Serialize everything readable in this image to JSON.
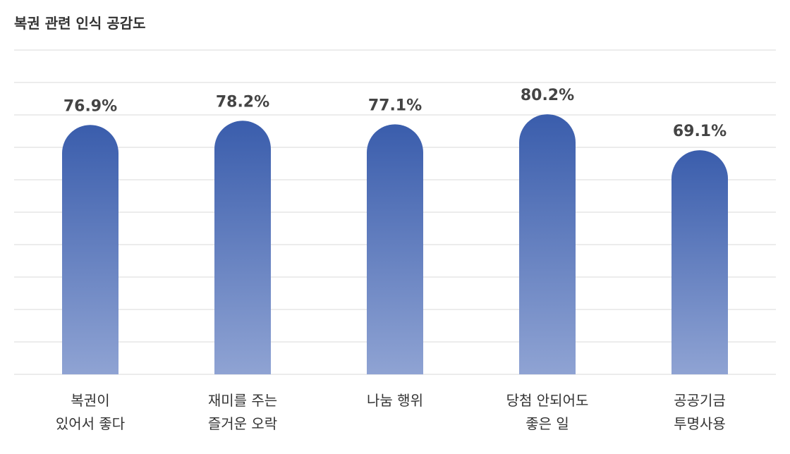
{
  "chart_data": {
    "type": "bar",
    "title": "복권 관련 인식 공감도",
    "categories": [
      [
        "복권이",
        "있어서 좋다"
      ],
      [
        "재미를 주는",
        "즐거운 오락"
      ],
      [
        "나눔 행위"
      ],
      [
        "당첨 안되어도",
        "좋은 일"
      ],
      [
        "공공기금",
        "투명사용"
      ]
    ],
    "values": [
      76.9,
      78.2,
      77.1,
      80.2,
      69.1
    ],
    "value_labels": [
      "76.9%",
      "78.2%",
      "77.1%",
      "80.2%",
      "69.1%"
    ],
    "gradient": [
      "#3a5dac",
      "#8fa3d3"
    ],
    "ylim": [
      0,
      100
    ],
    "yticks": [
      0,
      10,
      20,
      30,
      40,
      50,
      60,
      70,
      80,
      90,
      100
    ],
    "grid": true
  }
}
